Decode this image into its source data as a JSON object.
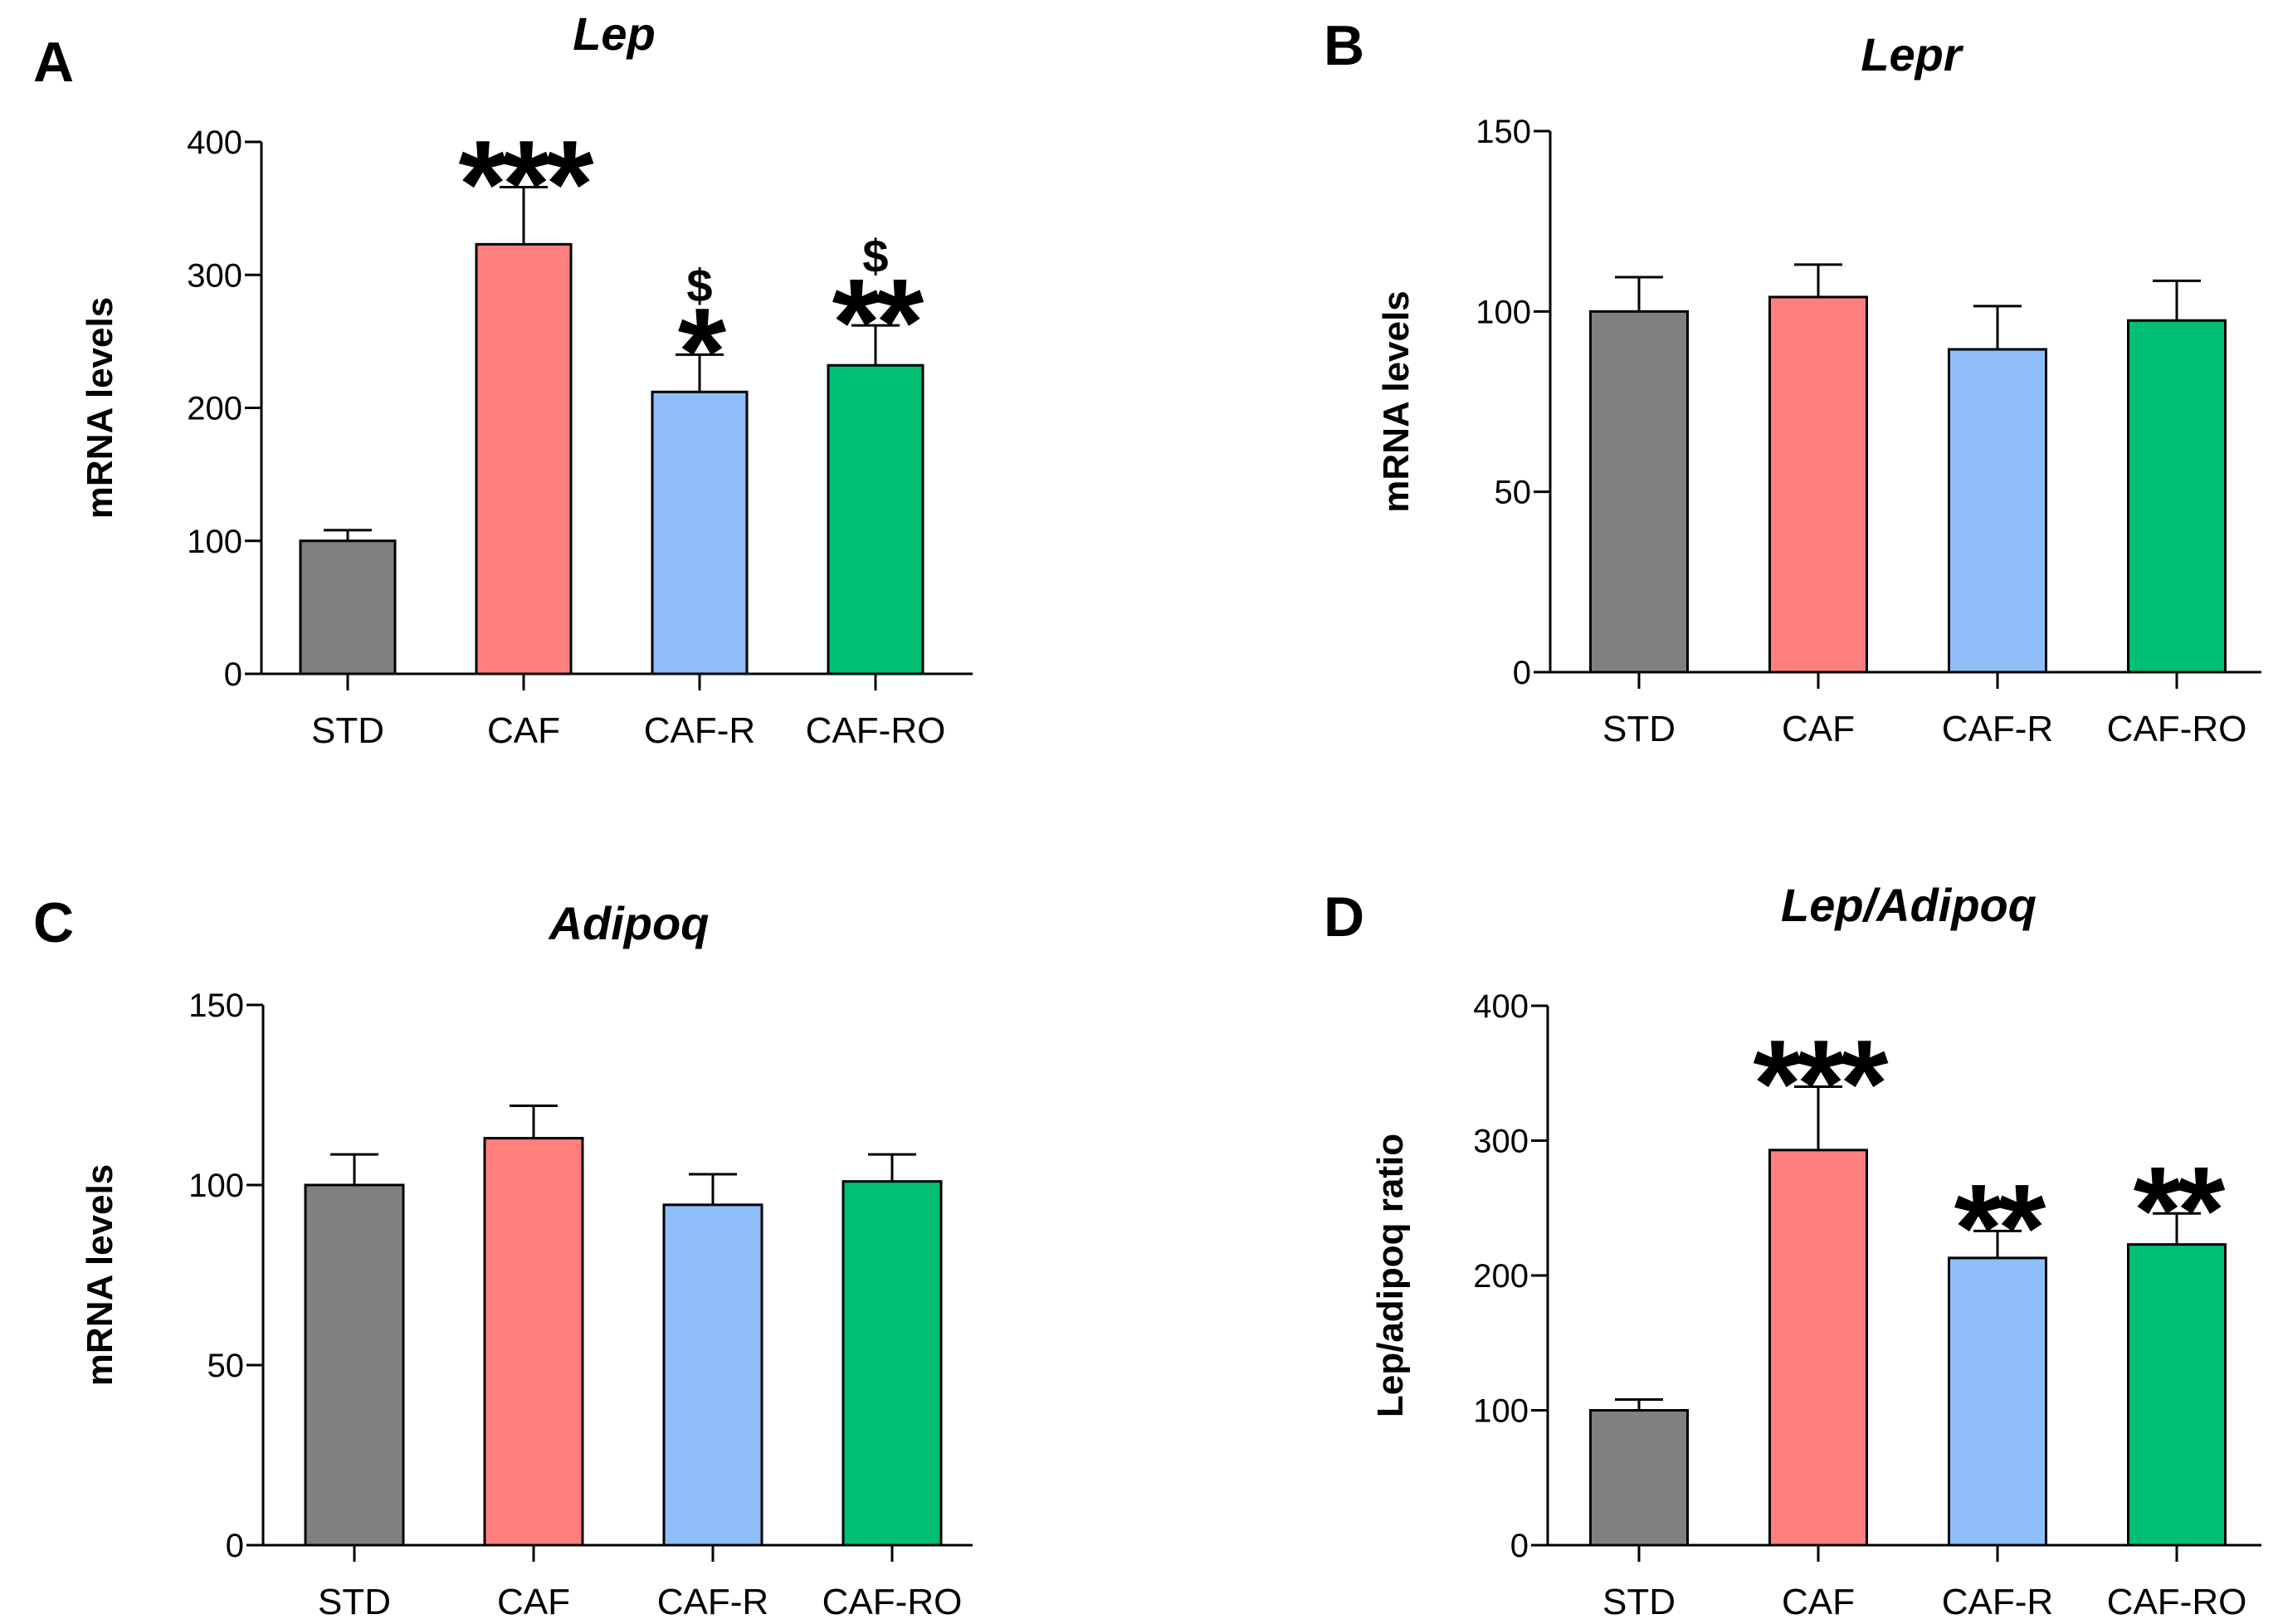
{
  "figure": {
    "colors": {
      "STD": "#808080",
      "CAF": "#FF7F7F",
      "CAF-R": "#8FBEF8",
      "CAF-RO": "#00BF73",
      "axis": "#000000"
    }
  },
  "chart_data": [
    {
      "panel_label": "A",
      "type": "bar",
      "title": "Lep",
      "ylabel": "mRNA levels",
      "xlabel": "",
      "categories": [
        "STD",
        "CAF",
        "CAF-R",
        "CAF-RO"
      ],
      "values": [
        100,
        323,
        212,
        232
      ],
      "errors": [
        8,
        43,
        28,
        30
      ],
      "ylim": [
        0,
        400
      ],
      "yticks": [
        0,
        100,
        200,
        300,
        400
      ],
      "ytick_labels": [
        "0",
        "100",
        "200",
        "300",
        "400"
      ],
      "annotations": [
        {
          "category": "CAF",
          "stars": "***",
          "dollar": ""
        },
        {
          "category": "CAF-R",
          "stars": "*",
          "dollar": "$"
        },
        {
          "category": "CAF-RO",
          "stars": "**",
          "dollar": "$"
        }
      ]
    },
    {
      "panel_label": "B",
      "type": "bar",
      "title": "Lepr",
      "ylabel": "mRNA levels",
      "xlabel": "",
      "categories": [
        "STD",
        "CAF",
        "CAF-R",
        "CAF-RO"
      ],
      "values": [
        100,
        104,
        89.5,
        97.5
      ],
      "errors": [
        9.5,
        9,
        12,
        11
      ],
      "ylim": [
        0,
        150
      ],
      "yticks": [
        0,
        50,
        100,
        150
      ],
      "ytick_labels": [
        "0",
        "50",
        "100",
        "150"
      ],
      "annotations": []
    },
    {
      "panel_label": "C",
      "type": "bar",
      "title": "Adipoq",
      "ylabel": "mRNA levels",
      "xlabel": "",
      "categories": [
        "STD",
        "CAF",
        "CAF-R",
        "CAF-RO"
      ],
      "values": [
        100,
        113,
        94.5,
        101
      ],
      "errors": [
        8.5,
        9,
        8.5,
        7.5
      ],
      "ylim": [
        0,
        150
      ],
      "yticks": [
        0,
        50,
        100,
        150
      ],
      "ytick_labels": [
        "0",
        "50",
        "100",
        "150"
      ],
      "annotations": []
    },
    {
      "panel_label": "D",
      "type": "bar",
      "title": "Lep/Adipoq",
      "ylabel": "Lep/adipoq ratio",
      "xlabel": "",
      "categories": [
        "STD",
        "CAF",
        "CAF-R",
        "CAF-RO"
      ],
      "values": [
        100,
        293,
        213,
        223
      ],
      "errors": [
        8,
        47,
        20,
        23
      ],
      "ylim": [
        0,
        400
      ],
      "yticks": [
        0,
        100,
        200,
        300,
        400
      ],
      "ytick_labels": [
        "0",
        "100",
        "200",
        "300",
        "400"
      ],
      "annotations": [
        {
          "category": "CAF",
          "stars": "***",
          "dollar": ""
        },
        {
          "category": "CAF-R",
          "stars": "**",
          "dollar": ""
        },
        {
          "category": "CAF-RO",
          "stars": "**",
          "dollar": ""
        }
      ]
    }
  ]
}
